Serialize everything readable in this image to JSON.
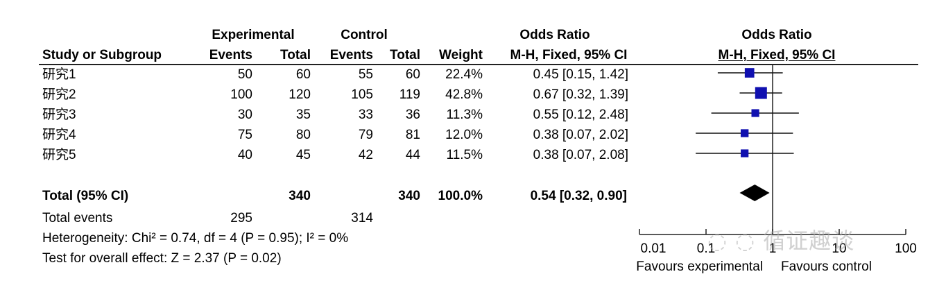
{
  "header": {
    "experimental": "Experimental",
    "control": "Control",
    "odds_ratio_left": "Odds Ratio",
    "odds_ratio_right": "Odds Ratio",
    "study": "Study or Subgroup",
    "exp_events": "Events",
    "exp_total": "Total",
    "ctl_events": "Events",
    "ctl_total": "Total",
    "weight": "Weight",
    "method_left": "M-H, Fixed, 95% CI",
    "method_right": "M-H, Fixed, 95% CI"
  },
  "studies": [
    {
      "name": "研究1",
      "exp_events": "50",
      "exp_total": "60",
      "ctl_events": "55",
      "ctl_total": "60",
      "weight": "22.4%",
      "ci_text": "0.45 [0.15, 1.42]"
    },
    {
      "name": "研究2",
      "exp_events": "100",
      "exp_total": "120",
      "ctl_events": "105",
      "ctl_total": "119",
      "weight": "42.8%",
      "ci_text": "0.67 [0.32, 1.39]"
    },
    {
      "name": "研究3",
      "exp_events": "30",
      "exp_total": "35",
      "ctl_events": "33",
      "ctl_total": "36",
      "weight": "11.3%",
      "ci_text": "0.55 [0.12, 2.48]"
    },
    {
      "name": "研究4",
      "exp_events": "75",
      "exp_total": "80",
      "ctl_events": "79",
      "ctl_total": "81",
      "weight": "12.0%",
      "ci_text": "0.38 [0.07, 2.02]"
    },
    {
      "name": "研究5",
      "exp_events": "40",
      "exp_total": "45",
      "ctl_events": "42",
      "ctl_total": "44",
      "weight": "11.5%",
      "ci_text": "0.38 [0.07, 2.08]"
    }
  ],
  "total": {
    "label": "Total (95% CI)",
    "exp_total": "340",
    "ctl_total": "340",
    "weight": "100.0%",
    "ci_text": "0.54 [0.32, 0.90]"
  },
  "total_events": {
    "label": "Total events",
    "exp": "295",
    "ctl": "314"
  },
  "heterogeneity": "Heterogeneity: Chi² = 0.74, df = 4 (P = 0.95); I² = 0%",
  "overall_effect": "Test for overall effect: Z = 2.37 (P = 0.02)",
  "axis": {
    "favours_left": "Favours experimental",
    "favours_right": "Favours control"
  },
  "watermark": "循证趣谈",
  "chart_data": {
    "type": "forest",
    "scale": "log",
    "xlim": [
      0.01,
      100
    ],
    "ticks": [
      0.01,
      0.1,
      1,
      10,
      100
    ],
    "tick_labels": [
      "0.01",
      "0.1",
      "1",
      "10",
      "100"
    ],
    "reference_line": 1,
    "marker_color": "#1010b0",
    "studies": [
      {
        "name": "研究1",
        "or": 0.45,
        "lo": 0.15,
        "hi": 1.42,
        "weight": 22.4
      },
      {
        "name": "研究2",
        "or": 0.67,
        "lo": 0.32,
        "hi": 1.39,
        "weight": 42.8
      },
      {
        "name": "研究3",
        "or": 0.55,
        "lo": 0.12,
        "hi": 2.48,
        "weight": 11.3
      },
      {
        "name": "研究4",
        "or": 0.38,
        "lo": 0.07,
        "hi": 2.02,
        "weight": 12.0
      },
      {
        "name": "研究5",
        "or": 0.38,
        "lo": 0.07,
        "hi": 2.08,
        "weight": 11.5
      }
    ],
    "pooled": {
      "or": 0.54,
      "lo": 0.32,
      "hi": 0.9
    }
  }
}
